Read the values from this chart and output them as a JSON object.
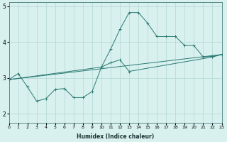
{
  "xlabel": "Humidex (Indice chaleur)",
  "bg_color": "#d8f0ee",
  "line_color": "#2a7a72",
  "grid_color": "#b0d8d4",
  "xlim": [
    0,
    23
  ],
  "ylim": [
    1.75,
    5.1
  ],
  "yticks": [
    2,
    3,
    4,
    5
  ],
  "xticks": [
    0,
    1,
    2,
    3,
    4,
    5,
    6,
    7,
    8,
    9,
    10,
    11,
    12,
    13,
    14,
    15,
    16,
    17,
    18,
    19,
    20,
    21,
    22,
    23
  ],
  "curve_x": [
    0,
    1,
    2,
    3,
    4,
    5,
    6,
    7,
    8,
    9,
    10,
    11,
    12,
    13,
    14,
    15,
    16,
    17,
    18,
    19,
    20,
    21,
    22,
    23
  ],
  "curve_y": [
    2.95,
    3.12,
    2.75,
    2.35,
    2.42,
    2.68,
    2.7,
    2.45,
    2.45,
    2.62,
    3.3,
    3.8,
    4.35,
    4.82,
    4.82,
    4.52,
    4.15,
    4.15,
    4.15,
    3.9,
    3.9,
    3.58,
    3.6,
    3.65
  ],
  "upper_line_x": [
    0,
    23
  ],
  "upper_line_y": [
    2.95,
    3.65
  ],
  "lower_line_x": [
    0,
    23
  ],
  "lower_line_y": [
    2.95,
    3.65
  ],
  "mid_line_x": [
    0,
    10,
    11,
    12,
    13,
    22,
    23
  ],
  "mid_line_y": [
    2.95,
    3.3,
    3.42,
    3.5,
    3.18,
    3.58,
    3.65
  ]
}
